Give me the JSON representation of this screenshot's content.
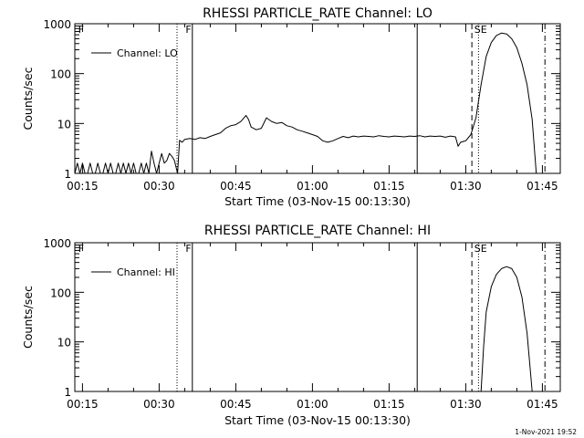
{
  "footer_timestamp": "1-Nov-2021 19:52",
  "chart_data": [
    {
      "type": "line",
      "title": "RHESSI PARTICLE_RATE Channel: LO",
      "xlabel": "Start Time (03-Nov-15 00:13:30)",
      "ylabel": "Counts/sec",
      "yscale": "log",
      "ylim": [
        1,
        1000
      ],
      "y_tick_labels": [
        "1",
        "10",
        "100",
        "1000"
      ],
      "x_tick_labels": [
        "00:15",
        "00:30",
        "00:45",
        "01:00",
        "01:15",
        "01:30",
        "01:45"
      ],
      "x_ticks_min": [
        15,
        30,
        45,
        60,
        75,
        90,
        105
      ],
      "xlim_min": [
        13.5,
        108.5
      ],
      "legend": {
        "position": "top-left",
        "entries": [
          "Channel: LO"
        ]
      },
      "flags": [
        {
          "label": "F",
          "at_min": 14
        },
        {
          "label": "F",
          "at_min": 35
        },
        {
          "label": "SE",
          "at_min": 91.5
        }
      ],
      "markers": [
        {
          "style": "dotted",
          "at_min": 33.5
        },
        {
          "style": "solid",
          "at_min": 36.5
        },
        {
          "style": "solid",
          "at_min": 80.5
        },
        {
          "style": "dashed",
          "at_min": 91.2
        },
        {
          "style": "dotted",
          "at_min": 92.5
        },
        {
          "style": "dashdot",
          "at_min": 105.5
        }
      ],
      "series": [
        {
          "name": "Channel: LO",
          "points": [
            [
              13.5,
              1
            ],
            [
              14,
              1.6
            ],
            [
              14.5,
              1
            ],
            [
              15,
              1.6
            ],
            [
              15.5,
              1
            ],
            [
              16,
              1
            ],
            [
              16.5,
              1.6
            ],
            [
              17,
              1
            ],
            [
              17.5,
              1
            ],
            [
              18,
              1.6
            ],
            [
              18.5,
              1
            ],
            [
              19,
              1
            ],
            [
              19.5,
              1.6
            ],
            [
              20,
              1
            ],
            [
              20.5,
              1.6
            ],
            [
              21,
              1
            ],
            [
              21.5,
              1
            ],
            [
              22,
              1.6
            ],
            [
              22.5,
              1
            ],
            [
              23,
              1.6
            ],
            [
              23.5,
              1
            ],
            [
              24,
              1.6
            ],
            [
              24.5,
              1
            ],
            [
              25,
              1.6
            ],
            [
              25.5,
              1
            ],
            [
              26,
              1
            ],
            [
              26.5,
              1.6
            ],
            [
              27,
              1
            ],
            [
              27.5,
              1.6
            ],
            [
              28,
              1
            ],
            [
              28.5,
              2.8
            ],
            [
              29,
              1.6
            ],
            [
              29.5,
              1
            ],
            [
              30,
              1.6
            ],
            [
              30.5,
              2.5
            ],
            [
              31,
              1.6
            ],
            [
              31.5,
              1.8
            ],
            [
              32,
              2.5
            ],
            [
              32.5,
              2.2
            ],
            [
              33,
              1.8
            ],
            [
              33.6,
              1
            ],
            [
              34,
              4.6
            ],
            [
              34.5,
              4.2
            ],
            [
              35,
              4.8
            ],
            [
              36,
              5
            ],
            [
              37,
              4.8
            ],
            [
              38,
              5.2
            ],
            [
              39,
              5
            ],
            [
              40,
              5.5
            ],
            [
              41,
              6
            ],
            [
              42,
              6.5
            ],
            [
              43,
              8
            ],
            [
              44,
              9
            ],
            [
              45,
              9.5
            ],
            [
              46,
              11
            ],
            [
              47,
              14.5
            ],
            [
              47.5,
              12
            ],
            [
              48,
              8.5
            ],
            [
              49,
              7.5
            ],
            [
              50,
              8
            ],
            [
              51,
              13
            ],
            [
              52,
              11
            ],
            [
              53,
              10
            ],
            [
              54,
              10.5
            ],
            [
              55,
              9
            ],
            [
              56,
              8.5
            ],
            [
              57,
              7.5
            ],
            [
              58,
              7
            ],
            [
              59,
              6.5
            ],
            [
              60,
              6
            ],
            [
              61,
              5.5
            ],
            [
              62,
              4.5
            ],
            [
              63,
              4.2
            ],
            [
              64,
              4.5
            ],
            [
              65,
              5
            ],
            [
              66,
              5.5
            ],
            [
              67,
              5.2
            ],
            [
              68,
              5.6
            ],
            [
              69,
              5.4
            ],
            [
              70,
              5.6
            ],
            [
              71,
              5.5
            ],
            [
              72,
              5.4
            ],
            [
              73,
              5.7
            ],
            [
              74,
              5.5
            ],
            [
              75,
              5.4
            ],
            [
              76,
              5.6
            ],
            [
              77,
              5.5
            ],
            [
              78,
              5.4
            ],
            [
              79,
              5.6
            ],
            [
              80,
              5.5
            ],
            [
              81,
              5.7
            ],
            [
              82,
              5.4
            ],
            [
              83,
              5.6
            ],
            [
              84,
              5.5
            ],
            [
              85,
              5.6
            ],
            [
              86,
              5.3
            ],
            [
              87,
              5.6
            ],
            [
              88,
              5.4
            ],
            [
              88.5,
              3.5
            ],
            [
              89,
              4.2
            ],
            [
              90,
              4.5
            ],
            [
              91,
              6
            ],
            [
              92,
              13
            ],
            [
              93,
              60
            ],
            [
              94,
              220
            ],
            [
              95,
              420
            ],
            [
              96,
              580
            ],
            [
              97,
              650
            ],
            [
              98,
              620
            ],
            [
              99,
              500
            ],
            [
              100,
              330
            ],
            [
              101,
              160
            ],
            [
              102,
              60
            ],
            [
              103,
              12
            ],
            [
              103.8,
              1
            ]
          ]
        }
      ]
    },
    {
      "type": "line",
      "title": "RHESSI PARTICLE_RATE Channel: HI",
      "xlabel": "Start Time (03-Nov-15 00:13:30)",
      "ylabel": "Counts/sec",
      "yscale": "log",
      "ylim": [
        1,
        1000
      ],
      "y_tick_labels": [
        "1",
        "10",
        "100",
        "1000"
      ],
      "x_tick_labels": [
        "00:15",
        "00:30",
        "00:45",
        "01:00",
        "01:15",
        "01:30",
        "01:45"
      ],
      "x_ticks_min": [
        15,
        30,
        45,
        60,
        75,
        90,
        105
      ],
      "xlim_min": [
        13.5,
        108.5
      ],
      "legend": {
        "position": "top-left",
        "entries": [
          "Channel: HI"
        ]
      },
      "flags": [
        {
          "label": "F",
          "at_min": 14
        },
        {
          "label": "F",
          "at_min": 35
        },
        {
          "label": "SE",
          "at_min": 91.5
        }
      ],
      "markers": [
        {
          "style": "dotted",
          "at_min": 33.5
        },
        {
          "style": "solid",
          "at_min": 36.5
        },
        {
          "style": "solid",
          "at_min": 80.5
        },
        {
          "style": "dashed",
          "at_min": 91.2
        },
        {
          "style": "dotted",
          "at_min": 92.5
        },
        {
          "style": "dashdot",
          "at_min": 105.5
        }
      ],
      "series": [
        {
          "name": "Channel: HI",
          "points": [
            [
              93,
              1
            ],
            [
              93.5,
              8
            ],
            [
              94,
              40
            ],
            [
              95,
              130
            ],
            [
              96,
              230
            ],
            [
              97,
              300
            ],
            [
              98,
              330
            ],
            [
              99,
              300
            ],
            [
              100,
              200
            ],
            [
              101,
              80
            ],
            [
              102,
              15
            ],
            [
              103,
              1
            ]
          ]
        }
      ]
    }
  ]
}
